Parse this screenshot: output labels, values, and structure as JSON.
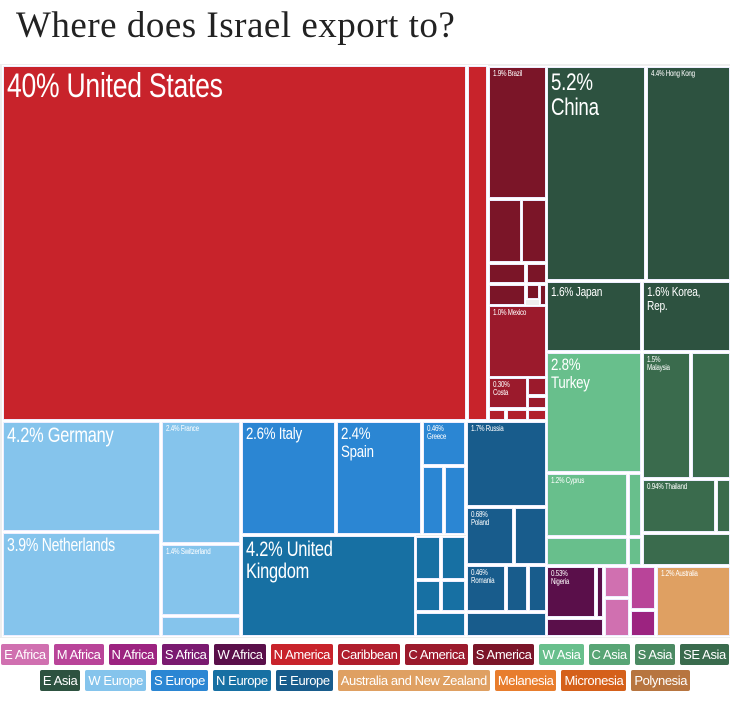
{
  "title": "Where does Israel export to?",
  "chart_data": {
    "type": "treemap",
    "title": "Where does Israel export to?",
    "unit": "% of exports",
    "items": [
      {
        "label": "40% United States",
        "name": "United States",
        "value": 40,
        "region": "N America"
      },
      {
        "label": "5.2%\nChina",
        "name": "China",
        "value": 5.2,
        "region": "E Asia"
      },
      {
        "label": "4.4% Hong Kong",
        "name": "Hong Kong",
        "value": 4.4,
        "region": "E Asia"
      },
      {
        "label": "4.2% Germany",
        "name": "Germany",
        "value": 4.2,
        "region": "W Europe"
      },
      {
        "label": "4.2% United Kingdom",
        "name": "United Kingdom",
        "value": 4.2,
        "region": "N Europe"
      },
      {
        "label": "3.9% Netherlands",
        "name": "Netherlands",
        "value": 3.9,
        "region": "W Europe"
      },
      {
        "label": "2.8% Turkey",
        "name": "Turkey",
        "value": 2.8,
        "region": "W Asia"
      },
      {
        "label": "2.6% Italy",
        "name": "Italy",
        "value": 2.6,
        "region": "S Europe"
      },
      {
        "label": "2.4% Spain",
        "name": "Spain",
        "value": 2.4,
        "region": "S Europe"
      },
      {
        "label": "2.4% France",
        "name": "France",
        "value": 2.4,
        "region": "W Europe"
      },
      {
        "label": "1.9% Brazil",
        "name": "Brazil",
        "value": 1.9,
        "region": "S America"
      },
      {
        "label": "1.7% Russia",
        "name": "Russia",
        "value": 1.7,
        "region": "E Europe"
      },
      {
        "label": "1.6% Japan",
        "name": "Japan",
        "value": 1.6,
        "region": "E Asia"
      },
      {
        "label": "1.6% Korea, Rep.",
        "name": "Korea, Rep.",
        "value": 1.6,
        "region": "E Asia"
      },
      {
        "label": "1.5%\nMalaysia",
        "name": "Malaysia",
        "value": 1.5,
        "region": "SE Asia"
      },
      {
        "label": "1.4% Switzerland",
        "name": "Switzerland",
        "value": 1.4,
        "region": "W Europe"
      },
      {
        "label": "1.2% Cyprus",
        "name": "Cyprus",
        "value": 1.2,
        "region": "W Asia"
      },
      {
        "label": "1.2% Australia",
        "name": "Australia",
        "value": 1.2,
        "region": "Australia and New Zealand"
      },
      {
        "label": "1.0% Mexico",
        "name": "Mexico",
        "value": 1.0,
        "region": "C America"
      },
      {
        "label": "0.94% Thailand",
        "name": "Thailand",
        "value": 0.94,
        "region": "SE Asia"
      },
      {
        "label": "0.68%\nPoland",
        "name": "Poland",
        "value": 0.68,
        "region": "E Europe"
      },
      {
        "label": "0.53%\nNigeria",
        "name": "Nigeria",
        "value": 0.53,
        "region": "W Africa"
      },
      {
        "label": "0.46%\nGreece",
        "name": "Greece",
        "value": 0.46,
        "region": "S Europe"
      },
      {
        "label": "0.46%\nRomania",
        "name": "Romania",
        "value": 0.46,
        "region": "E Europe"
      },
      {
        "label": "0.30%\nCosta",
        "name": "Costa Rica",
        "value": 0.3,
        "region": "C America"
      }
    ]
  },
  "legend": [
    [
      {
        "name": "E Africa",
        "color": "#d070b0"
      },
      {
        "name": "M Africa",
        "color": "#b94499"
      },
      {
        "name": "N Africa",
        "color": "#9c2380"
      },
      {
        "name": "S Africa",
        "color": "#7a1a70"
      },
      {
        "name": "W Africa",
        "color": "#5a0f4a"
      },
      {
        "name": "N America",
        "color": "#c8232b"
      },
      {
        "name": "Caribbean",
        "color": "#b01e2d"
      },
      {
        "name": "C America",
        "color": "#9b1a2c"
      },
      {
        "name": "S America",
        "color": "#7b1528"
      },
      {
        "name": "W Asia",
        "color": "#68bf8c"
      },
      {
        "name": "C Asia",
        "color": "#58a575"
      },
      {
        "name": "S Asia",
        "color": "#4b8a62"
      },
      {
        "name": "SE Asia",
        "color": "#3a6b4d"
      }
    ],
    [
      {
        "name": "E Asia",
        "color": "#2d5240"
      },
      {
        "name": "W Europe",
        "color": "#85c4ec"
      },
      {
        "name": "S Europe",
        "color": "#2b86d3"
      },
      {
        "name": "N Europe",
        "color": "#1770a3"
      },
      {
        "name": "E Europe",
        "color": "#185c8c"
      },
      {
        "name": "Australia and New Zealand",
        "color": "#dfa062"
      },
      {
        "name": "Melanesia",
        "color": "#e87d2d"
      },
      {
        "name": "Micronesia",
        "color": "#d5601a"
      },
      {
        "name": "Polynesia",
        "color": "#b77540"
      }
    ]
  ]
}
